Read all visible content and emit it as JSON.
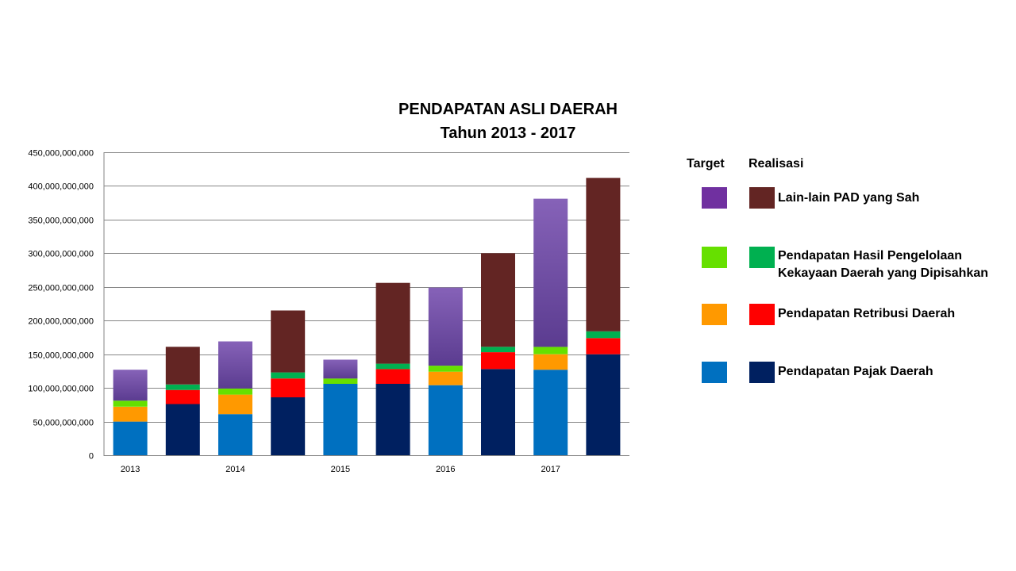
{
  "chart_data": {
    "type": "bar",
    "stacked": true,
    "title": [
      "PENDAPATAN ASLI DAERAH",
      "Tahun  2013 - 2017"
    ],
    "y_ticks": [
      "0",
      "50,000,000,000",
      "100,000,000,000",
      "150,000,000,000",
      "200,000,000,000",
      "250,000,000,000",
      "300,000,000,000",
      "350,000,000,000",
      "400,000,000,000",
      "450,000,000,000"
    ],
    "ylim": [
      0,
      450000000000
    ],
    "grid": true,
    "categories": [
      "2013",
      "2014",
      "2015",
      "2016",
      "2017"
    ],
    "bar_groups": [
      "Target",
      "Realisasi"
    ],
    "series": [
      {
        "name": "Pendapatan Pajak  Daerah",
        "target_color": "#0070C0",
        "realisasi_color": "#002060",
        "target": [
          50000000000,
          61000000000,
          106000000000,
          104000000000,
          127000000000
        ],
        "realisasi": [
          76000000000,
          86000000000,
          106000000000,
          128000000000,
          150000000000
        ]
      },
      {
        "name": "Pendapatan Retribusi Daerah",
        "target_color": "#FF9900",
        "realisasi_color": "#FF0000",
        "target": [
          22000000000,
          29000000000,
          0,
          20000000000,
          23000000000
        ],
        "realisasi": [
          21000000000,
          28000000000,
          22000000000,
          25000000000,
          24000000000
        ]
      },
      {
        "name": "Pendapatan Hasil Pengelolaan Kekayaan Daerah yang Dipisahkan",
        "target_color": "#66E000",
        "realisasi_color": "#00B050",
        "target": [
          9000000000,
          9000000000,
          8000000000,
          9000000000,
          11000000000
        ],
        "realisasi": [
          8000000000,
          9000000000,
          8000000000,
          8000000000,
          10000000000
        ]
      },
      {
        "name": "Lain-lain PAD yang Sah",
        "target_color": "#7F5BB0",
        "realisasi_color": "#632523",
        "target": [
          46000000000,
          70000000000,
          28000000000,
          116000000000,
          220000000000
        ],
        "realisasi": [
          56000000000,
          92000000000,
          120000000000,
          139000000000,
          228000000000
        ]
      }
    ]
  },
  "legend": {
    "header_target": "Target",
    "header_realisasi": "Realisasi",
    "items": [
      {
        "label": "Lain-lain PAD yang Sah",
        "target_color": "#7030A0",
        "realisasi_color": "#632523"
      },
      {
        "label": "Pendapatan Hasil Pengelolaan Kekayaan Daerah yang Dipisahkan",
        "target_color": "#66E000",
        "realisasi_color": "#00B050"
      },
      {
        "label": "Pendapatan Retribusi Daerah",
        "target_color": "#FF9900",
        "realisasi_color": "#FF0000"
      },
      {
        "label": "Pendapatan Pajak  Daerah",
        "target_color": "#0070C0",
        "realisasi_color": "#002060"
      }
    ]
  }
}
